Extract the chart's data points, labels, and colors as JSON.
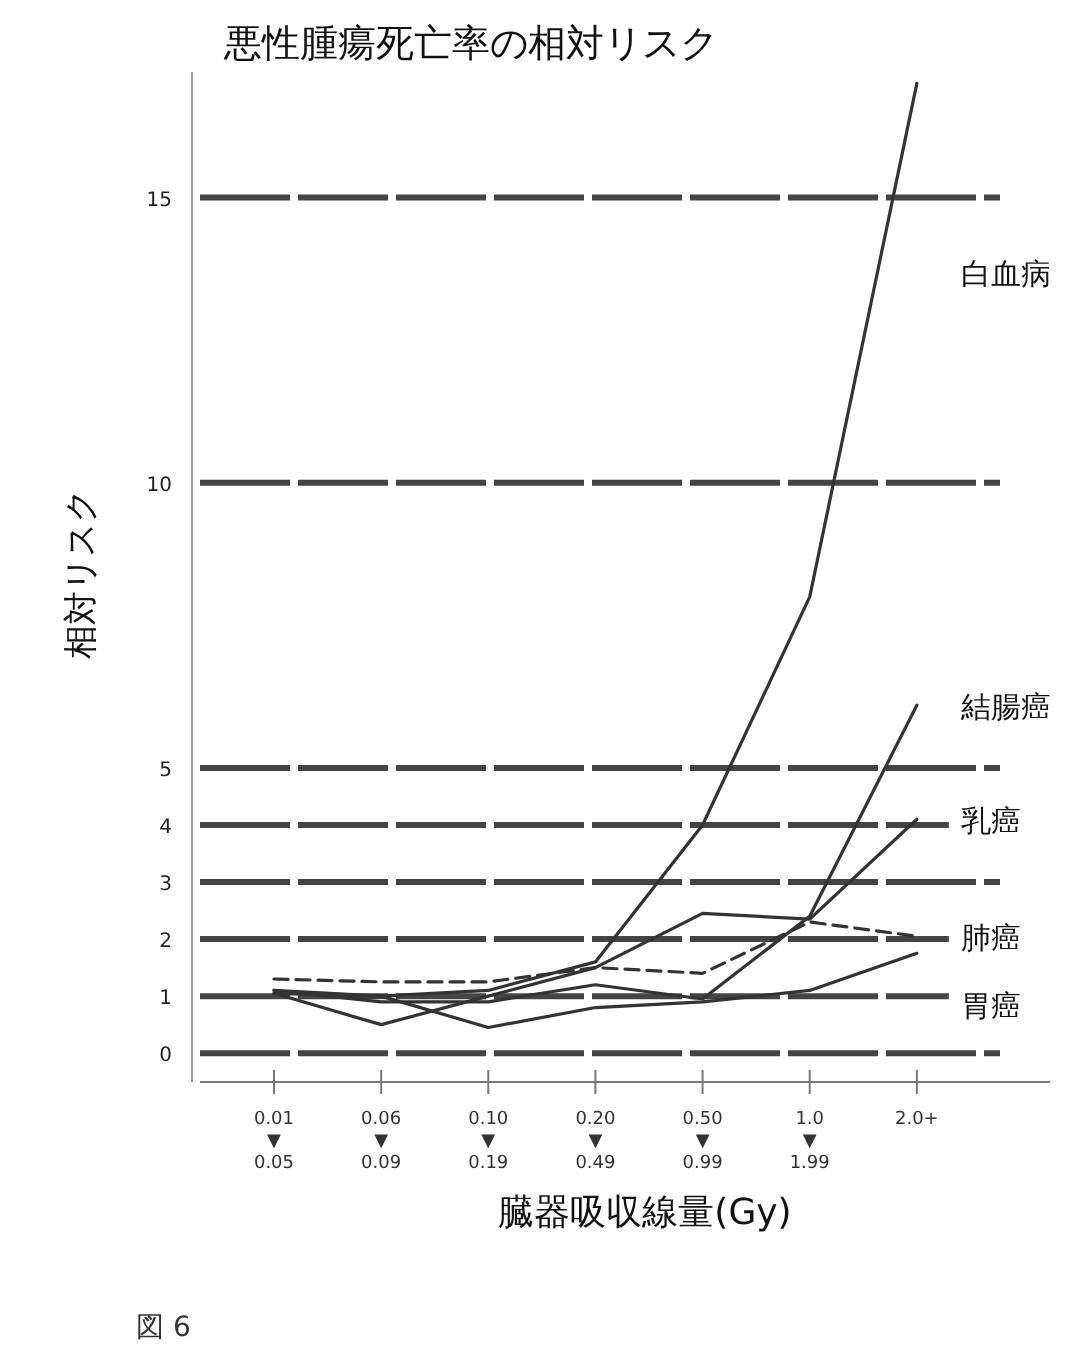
{
  "chart_data": {
    "type": "line",
    "title": "悪性腫瘍死亡率の相対リスク",
    "xlabel": "臓器吸収線量(Gy)",
    "ylabel": "相対リスク",
    "categories": [
      "0.01\n▼\n0.05",
      "0.06\n▼\n0.09",
      "0.10\n▼\n0.19",
      "0.20\n▼\n0.49",
      "0.50\n▼\n0.99",
      "1.0\n▼\n1.99",
      "2.0+"
    ],
    "series": [
      {
        "name": "白血病",
        "color": "#333333",
        "values": [
          1.05,
          1.0,
          1.1,
          1.6,
          4.0,
          8.0,
          17
        ]
      },
      {
        "name": "結腸癌",
        "color": "#333333",
        "values": [
          1.1,
          0.9,
          0.9,
          1.2,
          0.95,
          2.4,
          6.1
        ]
      },
      {
        "name": "乳癌",
        "color": "#333333",
        "values": [
          1.05,
          0.5,
          1.0,
          1.5,
          2.45,
          2.35,
          4.1
        ]
      },
      {
        "name": "肺癌",
        "color": "#333333",
        "line_style": "dashed",
        "values": [
          1.3,
          1.25,
          1.25,
          1.5,
          1.4,
          2.3,
          2.05
        ]
      },
      {
        "name": "胃癌",
        "color": "#333333",
        "values": [
          1.1,
          1.0,
          0.45,
          0.8,
          0.9,
          1.1,
          1.75
        ]
      }
    ],
    "ylim": [
      -0.4,
      17.2
    ],
    "yticks": [
      0,
      1,
      2,
      3,
      4,
      5,
      10,
      15
    ],
    "grid": "y",
    "legend": false,
    "marker": "none",
    "line_style": "solid",
    "annotations": [
      "図 6"
    ]
  }
}
